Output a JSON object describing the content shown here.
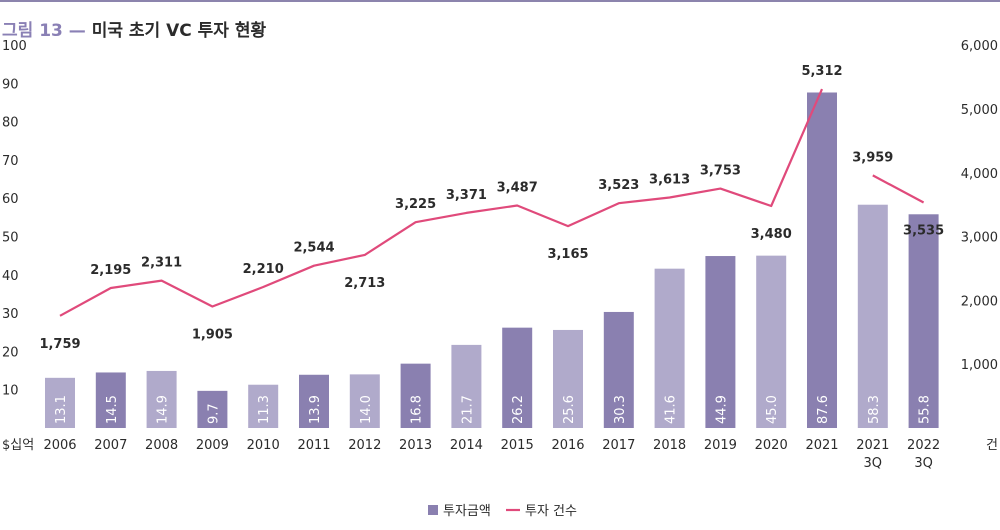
{
  "title": {
    "prefix": "그림 13 — ",
    "main": "미국 초기 VC 투자 현황"
  },
  "colors": {
    "bar_dark": "#8a80b0",
    "bar_light": "#b0aacb",
    "line": "#e04a7b",
    "text": "#2b2b2b",
    "title_accent": "#8a80b5"
  },
  "chart_data": {
    "type": "bar",
    "categories": [
      "2006",
      "2007",
      "2008",
      "2009",
      "2010",
      "2011",
      "2012",
      "2013",
      "2014",
      "2015",
      "2016",
      "2017",
      "2018",
      "2019",
      "2020",
      "2021",
      "2021\n3Q",
      "2022\n3Q"
    ],
    "y_left": {
      "unit": "$십억",
      "ticks": [
        "10",
        "20",
        "30",
        "40",
        "50",
        "60",
        "70",
        "80",
        "90",
        "100"
      ],
      "ylim": [
        0,
        100
      ]
    },
    "y_right": {
      "unit": "건",
      "ticks": [
        "1,000",
        "2,000",
        "3,000",
        "4,000",
        "5,000",
        "6,000"
      ],
      "ylim": [
        0,
        6000
      ]
    },
    "series": [
      {
        "name": "투자금액",
        "kind": "bar",
        "axis": "left",
        "values": [
          13.1,
          14.5,
          14.9,
          9.7,
          11.3,
          13.9,
          14.0,
          16.8,
          21.7,
          26.2,
          25.6,
          30.3,
          41.6,
          44.9,
          45.0,
          87.6,
          58.3,
          55.8
        ],
        "labels": [
          "13.1",
          "14.5",
          "14.9",
          "9.7",
          "11.3",
          "13.9",
          "14.0",
          "16.8",
          "21.7",
          "26.2",
          "25.6",
          "30.3",
          "41.6",
          "44.9",
          "45.0",
          "87.6",
          "58.3",
          "55.8"
        ],
        "shade": [
          "light",
          "dark",
          "light",
          "dark",
          "light",
          "dark",
          "light",
          "dark",
          "light",
          "dark",
          "light",
          "dark",
          "light",
          "dark",
          "light",
          "dark",
          "light",
          "dark"
        ]
      },
      {
        "name": "투자 건수",
        "kind": "line",
        "axis": "right",
        "values": [
          1759,
          2195,
          2311,
          1905,
          2210,
          2544,
          2713,
          3225,
          3371,
          3487,
          3165,
          3523,
          3613,
          3753,
          3480,
          5312,
          3959,
          3535
        ],
        "labels": [
          "1,759",
          "2,195",
          "2,311",
          "1,905",
          "2,210",
          "2,544",
          "2,713",
          "3,225",
          "3,371",
          "3,487",
          "3,165",
          "3,523",
          "3,613",
          "3,753",
          "3,480",
          "5,312",
          "3,959",
          "3,535"
        ],
        "label_pos": [
          "below",
          "above",
          "above",
          "below",
          "above",
          "above",
          "below",
          "above",
          "above",
          "above",
          "below",
          "above",
          "above",
          "above",
          "below",
          "above",
          "above",
          "below"
        ],
        "segments": [
          [
            0,
            15
          ],
          [
            16,
            17
          ]
        ]
      }
    ],
    "legend": {
      "placement": "bottom-center"
    }
  }
}
